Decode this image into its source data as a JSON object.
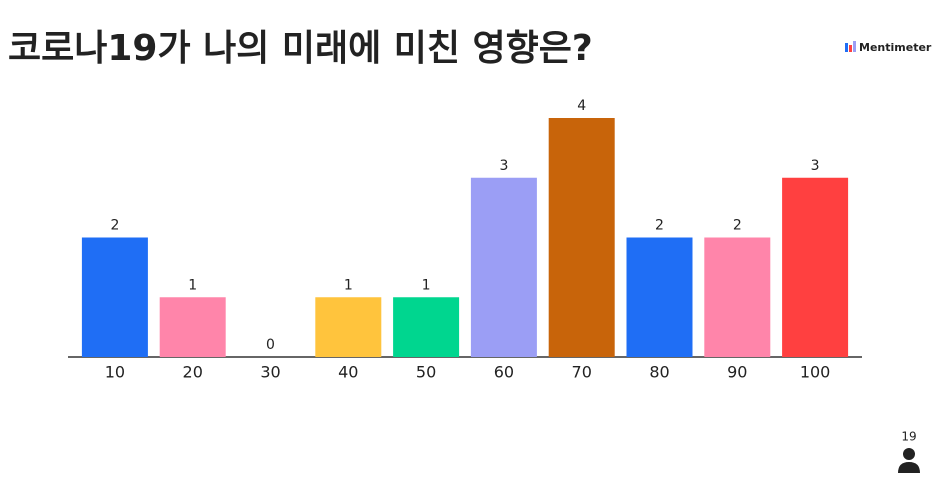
{
  "chart_data": {
    "type": "bar",
    "title": "코로나19가 나의 미래에 미친 영향은?",
    "categories": [
      "10",
      "20",
      "30",
      "40",
      "50",
      "60",
      "70",
      "80",
      "90",
      "100"
    ],
    "values": [
      2,
      1,
      0,
      1,
      1,
      3,
      4,
      2,
      2,
      3
    ],
    "colors": [
      "#1f6ef5",
      "#ff85aa",
      "#ff4040",
      "#ffc43d",
      "#00d68f",
      "#9b9ef5",
      "#c8640a",
      "#1f6ef5",
      "#ff85aa",
      "#ff4040"
    ]
  },
  "brand": "Mentimeter",
  "respondents": "19"
}
